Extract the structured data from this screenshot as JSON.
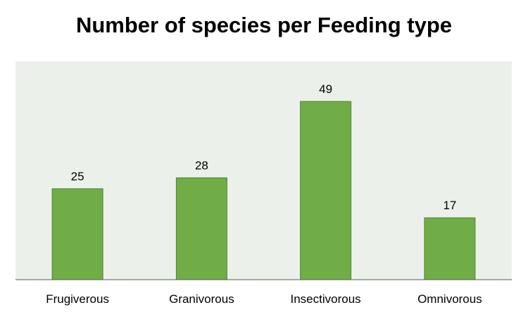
{
  "chart_data": {
    "type": "bar",
    "title": "Number of species per Feeding type",
    "categories": [
      "Frugiverous",
      "Granivorous",
      "Insectivorous",
      "Omnivorous"
    ],
    "values": [
      25,
      28,
      49,
      17
    ],
    "xlabel": "",
    "ylabel": "",
    "ylim": [
      0,
      55
    ],
    "grid": false,
    "legend": "none",
    "data_labels": true
  },
  "colors": {
    "bar_fill": "#70AD47",
    "bar_stroke": "#548235",
    "plot_background": "#EBF1EA",
    "axis_line": "#595959"
  }
}
